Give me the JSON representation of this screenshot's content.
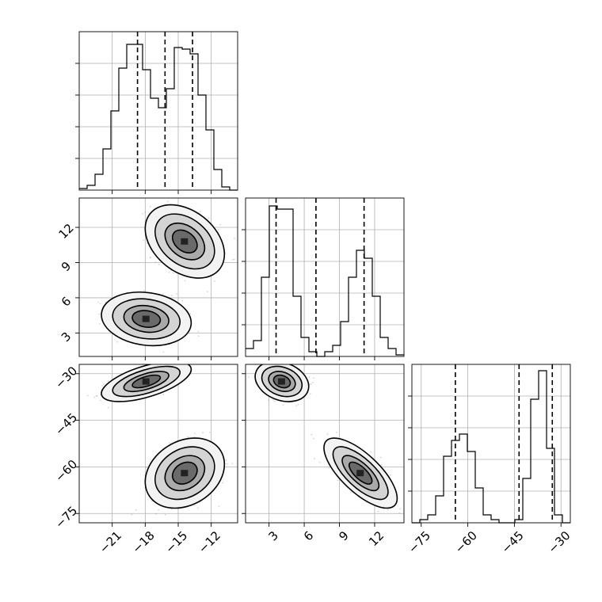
{
  "chart_data": {
    "type": "corner",
    "parameters": [
      {
        "ticks": [
          -21,
          -18,
          -15,
          -12
        ],
        "range": [
          -24,
          -9.6
        ],
        "quantiles": [
          -18.7,
          -16.2,
          -13.7
        ]
      },
      {
        "ticks": [
          3,
          6,
          9,
          12
        ],
        "range": [
          1,
          14.5
        ],
        "quantiles": [
          3.6,
          7.0,
          11.1
        ]
      },
      {
        "ticks": [
          -75,
          -60,
          -45,
          -30
        ],
        "range": [
          -78,
          -27
        ],
        "quantiles": [
          -64.0,
          -43.5,
          -32.8
        ]
      }
    ],
    "histograms": [
      {
        "param": 0,
        "bins": [
          -24.0,
          -23.28,
          -22.56,
          -21.84,
          -21.12,
          -20.4,
          -19.68,
          -18.96,
          -18.24,
          -17.52,
          -16.8,
          -16.08,
          -15.36,
          -14.64,
          -13.92,
          -13.2,
          -12.48,
          -11.76,
          -11.04,
          -10.32,
          -9.6
        ],
        "counts": [
          0.01,
          0.03,
          0.1,
          0.26,
          0.5,
          0.77,
          0.92,
          0.92,
          0.76,
          0.58,
          0.52,
          0.64,
          0.9,
          0.89,
          0.86,
          0.6,
          0.38,
          0.13,
          0.02,
          0.0
        ]
      },
      {
        "param": 1,
        "bins": [
          1.0,
          1.675,
          2.35,
          3.025,
          3.7,
          4.375,
          5.05,
          5.725,
          6.4,
          7.075,
          7.75,
          8.425,
          9.1,
          9.775,
          10.45,
          11.125,
          11.8,
          12.475,
          13.15,
          13.825,
          14.5
        ],
        "counts": [
          0.05,
          0.1,
          0.5,
          0.95,
          0.93,
          0.93,
          0.38,
          0.12,
          0.03,
          0.0,
          0.03,
          0.07,
          0.22,
          0.5,
          0.67,
          0.62,
          0.38,
          0.12,
          0.05,
          0.01
        ]
      },
      {
        "param": 2,
        "bins": [
          -78.0,
          -75.45,
          -72.9,
          -70.35,
          -67.8,
          -65.25,
          -62.7,
          -60.15,
          -57.6,
          -55.05,
          -52.5,
          -49.95,
          -47.4,
          -44.85,
          -42.3,
          -39.75,
          -37.2,
          -34.65,
          -32.1,
          -29.55,
          -27.0
        ],
        "counts": [
          0.0,
          0.02,
          0.05,
          0.17,
          0.42,
          0.52,
          0.56,
          0.45,
          0.22,
          0.05,
          0.02,
          0.0,
          0.0,
          0.02,
          0.28,
          0.78,
          0.96,
          0.47,
          0.05,
          0.0
        ]
      }
    ],
    "scatter_panels": [
      {
        "x_param": 0,
        "y_param": 1,
        "modes": [
          {
            "center": [
              -17.9,
              4.2
            ],
            "sd": [
              1.7,
              0.95
            ],
            "rho": -0.15,
            "weight": 0.5
          },
          {
            "center": [
              -14.4,
              10.8
            ],
            "sd": [
              1.5,
              1.3
            ],
            "rho": -0.35,
            "weight": 0.5
          }
        ]
      },
      {
        "x_param": 0,
        "y_param": 2,
        "modes": [
          {
            "center": [
              -17.9,
              -32.5
            ],
            "sd": [
              1.7,
              2.7
            ],
            "rho": 0.6,
            "weight": 0.5
          },
          {
            "center": [
              -14.4,
              -62.0
            ],
            "sd": [
              1.5,
              4.7
            ],
            "rho": 0.25,
            "weight": 0.5
          }
        ]
      },
      {
        "x_param": 1,
        "y_param": 2,
        "modes": [
          {
            "center": [
              4.1,
              -32.5
            ],
            "sd": [
              0.95,
              2.7
            ],
            "rho": -0.25,
            "weight": 0.5
          },
          {
            "center": [
              10.8,
              -62.0
            ],
            "sd": [
              1.3,
              4.7
            ],
            "rho": -0.72,
            "weight": 0.5
          }
        ]
      }
    ],
    "grid": true
  }
}
